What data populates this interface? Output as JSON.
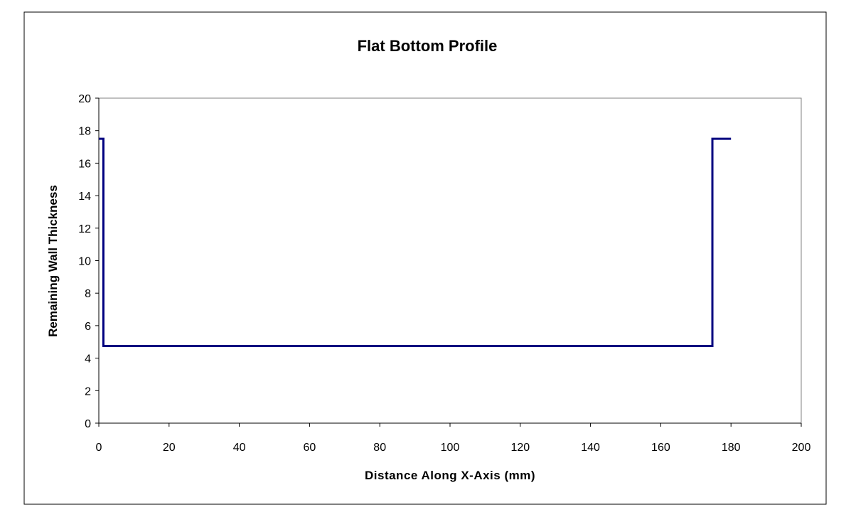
{
  "chart_data": {
    "type": "line",
    "title": "Flat Bottom Profile",
    "xlabel": "Distance Along X-Axis (mm)",
    "ylabel": "Remaining Wall Thickness",
    "xlim": [
      0,
      200
    ],
    "ylim": [
      0,
      20
    ],
    "xticks": [
      0,
      20,
      40,
      60,
      80,
      100,
      120,
      140,
      160,
      180,
      200
    ],
    "yticks": [
      0,
      2,
      4,
      6,
      8,
      10,
      12,
      14,
      16,
      18,
      20
    ],
    "grid": false,
    "legend": "none",
    "series": [
      {
        "color": "#000080",
        "points": [
          {
            "x": 0,
            "y": 17.5
          },
          {
            "x": 1.3,
            "y": 17.5
          },
          {
            "x": 1.3,
            "y": 4.75
          },
          {
            "x": 174.7,
            "y": 4.75
          },
          {
            "x": 174.7,
            "y": 17.5
          },
          {
            "x": 180,
            "y": 17.5
          }
        ]
      }
    ]
  }
}
